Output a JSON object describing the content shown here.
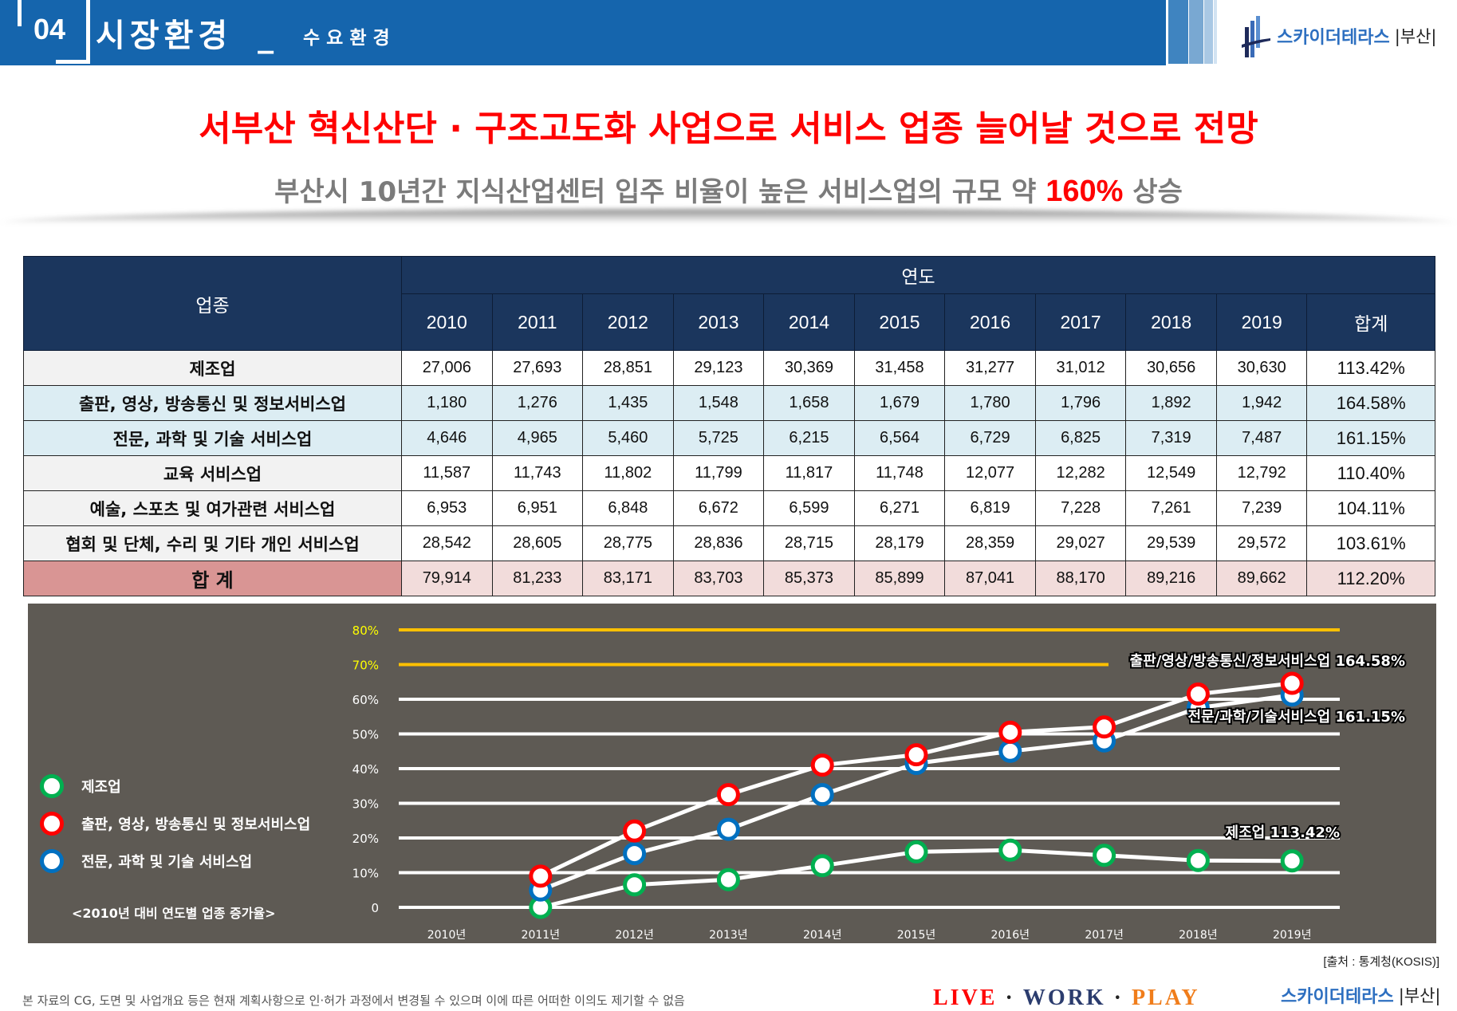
{
  "header": {
    "section_number": "04",
    "section_title": "시장환경",
    "separator": "_",
    "section_subtitle": "수요환경",
    "brand": "스카이더테라스",
    "brand_city": "|부산|",
    "colors": {
      "bar": "#1565ad",
      "stripes": [
        "#3f84c0",
        "#79a8d2",
        "#a9c8e4",
        "#d2e3f2"
      ]
    }
  },
  "headline": "서부산 혁신산단 · 구조고도화 사업으로 서비스 업종 늘어날 것으로 전망",
  "subheadline": {
    "prefix": "부산시 10년간 지식산업센터 입주 비율이 높은 서비스업의 규모 약 ",
    "highlight": "160%",
    "suffix": " 상승"
  },
  "table": {
    "header_category": "업종",
    "header_years_group": "연도",
    "columns": [
      "2010",
      "2011",
      "2012",
      "2013",
      "2014",
      "2015",
      "2016",
      "2017",
      "2018",
      "2019",
      "합계"
    ],
    "rows": [
      {
        "category": "제조업",
        "values": [
          "27,006",
          "27,693",
          "28,851",
          "29,123",
          "30,369",
          "31,458",
          "31,277",
          "31,012",
          "30,656",
          "30,630"
        ],
        "total": "113.42%"
      },
      {
        "category": "출판, 영상, 방송통신 및 정보서비스업",
        "values": [
          "1,180",
          "1,276",
          "1,435",
          "1,548",
          "1,658",
          "1,679",
          "1,780",
          "1,796",
          "1,892",
          "1,942"
        ],
        "total": "164.58%"
      },
      {
        "category": "전문, 과학 및 기술 서비스업",
        "values": [
          "4,646",
          "4,965",
          "5,460",
          "5,725",
          "6,215",
          "6,564",
          "6,729",
          "6,825",
          "7,319",
          "7,487"
        ],
        "total": "161.15%"
      },
      {
        "category": "교육 서비스업",
        "values": [
          "11,587",
          "11,743",
          "11,802",
          "11,799",
          "11,817",
          "11,748",
          "12,077",
          "12,282",
          "12,549",
          "12,792"
        ],
        "total": "110.40%"
      },
      {
        "category": "예술, 스포츠 및 여가관련 서비스업",
        "values": [
          "6,953",
          "6,951",
          "6,848",
          "6,672",
          "6,599",
          "6,271",
          "6,819",
          "7,228",
          "7,261",
          "7,239"
        ],
        "total": "104.11%"
      },
      {
        "category": "협회 및 단체, 수리 및 기타 개인 서비스업",
        "values": [
          "28,542",
          "28,605",
          "28,775",
          "28,836",
          "28,715",
          "28,179",
          "28,359",
          "29,027",
          "29,539",
          "29,572"
        ],
        "total": "103.61%"
      },
      {
        "category": "합 계",
        "values": [
          "79,914",
          "81,233",
          "83,171",
          "83,703",
          "85,373",
          "85,899",
          "87,041",
          "88,170",
          "89,216",
          "89,662"
        ],
        "total": "112.20%"
      }
    ]
  },
  "chart_data": {
    "type": "line",
    "title": "<2010년 대비 연도별 업종 증가율>",
    "xlabel": "",
    "ylabel": "",
    "x": [
      "2010년",
      "2011년",
      "2012년",
      "2013년",
      "2014년",
      "2015년",
      "2016년",
      "2017년",
      "2018년",
      "2019년"
    ],
    "y_ticks": [
      "0",
      "10%",
      "20%",
      "30%",
      "40%",
      "50%",
      "60%",
      "70%",
      "80%"
    ],
    "ylim": [
      0,
      80
    ],
    "grid": true,
    "highlight_gridlines": [
      70,
      80
    ],
    "legend_position": "left",
    "series": [
      {
        "name": "제조업",
        "color": "#00b050",
        "values": [
          null,
          0,
          6.5,
          8,
          12,
          16,
          16.5,
          15,
          13.5,
          13.4
        ],
        "end_label": "제조업  113.42%"
      },
      {
        "name": "출판, 영상, 방송통신 및 정보서비스업",
        "color": "#ff0000",
        "values": [
          null,
          9,
          22,
          32.5,
          41,
          44,
          50.5,
          52,
          61.5,
          64.6
        ],
        "end_label": "출판/영상/방송통신/정보서비스업 164.58%"
      },
      {
        "name": "전문, 과학 및 기술 서비스업",
        "color": "#0070c0",
        "values": [
          null,
          5,
          15.5,
          22.5,
          32.5,
          41.5,
          45,
          48,
          57.5,
          61.2
        ],
        "end_label": "전문/과학/기술서비스업  161.15%"
      }
    ]
  },
  "source": "[출처 : 통계청(KOSIS)]",
  "footer": {
    "disclaimer": "본 자료의 CG, 도면 및 사업개요 등은 현재 계획사항으로 인·허가 과정에서 변경될 수 있으며 이에 따른 어떠한 이의도 제기할 수 없음",
    "slogan": {
      "live": "LIVE",
      "work": "WORK",
      "play": "PLAY",
      "dot": "·"
    },
    "brand": "스카이더테라스",
    "brand_city": "|부산|"
  }
}
